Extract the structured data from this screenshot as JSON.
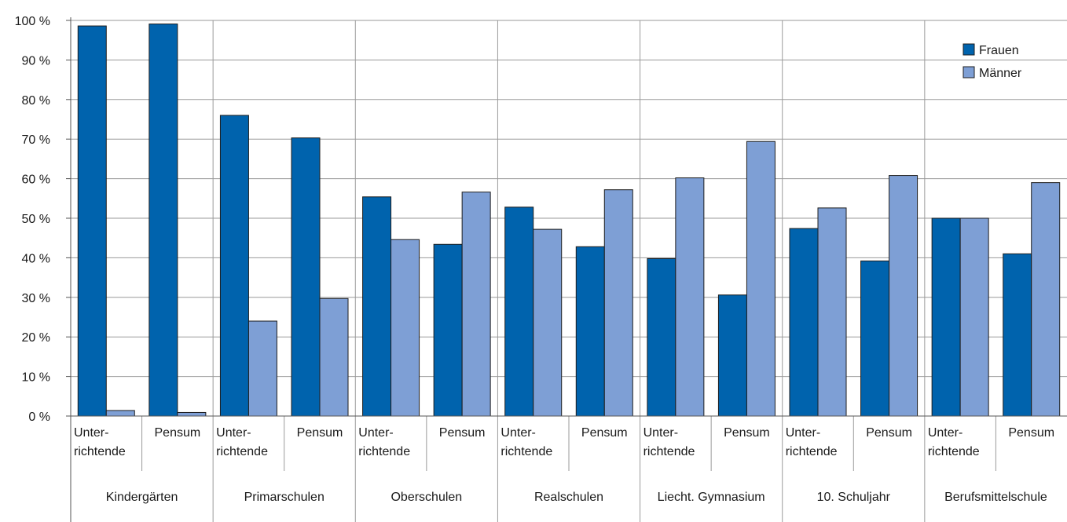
{
  "chart_data": {
    "type": "bar",
    "ylim": [
      0,
      100
    ],
    "yticks": [
      0,
      10,
      20,
      30,
      40,
      50,
      60,
      70,
      80,
      90,
      100
    ],
    "ytick_labels": [
      "0 %",
      "10 %",
      "20 %",
      "30 %",
      "40 %",
      "50 %",
      "60 %",
      "70 %",
      "80 %",
      "90 %",
      "100 %"
    ],
    "grid": true,
    "legend_position": "top-right",
    "groups": [
      {
        "label": "Kindergärten",
        "categories": [
          [
            "Unter-",
            "richtende"
          ],
          [
            "Pensum"
          ]
        ]
      },
      {
        "label": "Primarschulen",
        "categories": [
          [
            "Unter-",
            "richtende"
          ],
          [
            "Pensum"
          ]
        ]
      },
      {
        "label": "Oberschulen",
        "categories": [
          [
            "Unter-",
            "richtende"
          ],
          [
            "Pensum"
          ]
        ]
      },
      {
        "label": "Realschulen",
        "categories": [
          [
            "Unter-",
            "richtende"
          ],
          [
            "Pensum"
          ]
        ]
      },
      {
        "label": "Liecht. Gymnasium",
        "categories": [
          [
            "Unter-",
            "richtende"
          ],
          [
            "Pensum"
          ]
        ]
      },
      {
        "label": "10. Schuljahr",
        "categories": [
          [
            "Unter-",
            "richtende"
          ],
          [
            "Pensum"
          ]
        ]
      },
      {
        "label": "Berufsmittelschule",
        "categories": [
          [
            "Unter-",
            "richtende"
          ],
          [
            "Pensum"
          ]
        ]
      }
    ],
    "series": [
      {
        "name": "Frauen",
        "color": "#0063ad",
        "values": [
          98.6,
          99.1,
          76.0,
          70.3,
          55.4,
          43.4,
          52.8,
          42.8,
          39.8,
          30.6,
          47.4,
          39.2,
          50.0,
          41.0
        ]
      },
      {
        "name": "Männer",
        "color": "#7e9fd5",
        "values": [
          1.4,
          0.9,
          24.0,
          29.7,
          44.6,
          56.6,
          47.2,
          57.2,
          60.2,
          69.4,
          52.6,
          60.8,
          50.0,
          59.0
        ]
      }
    ]
  }
}
